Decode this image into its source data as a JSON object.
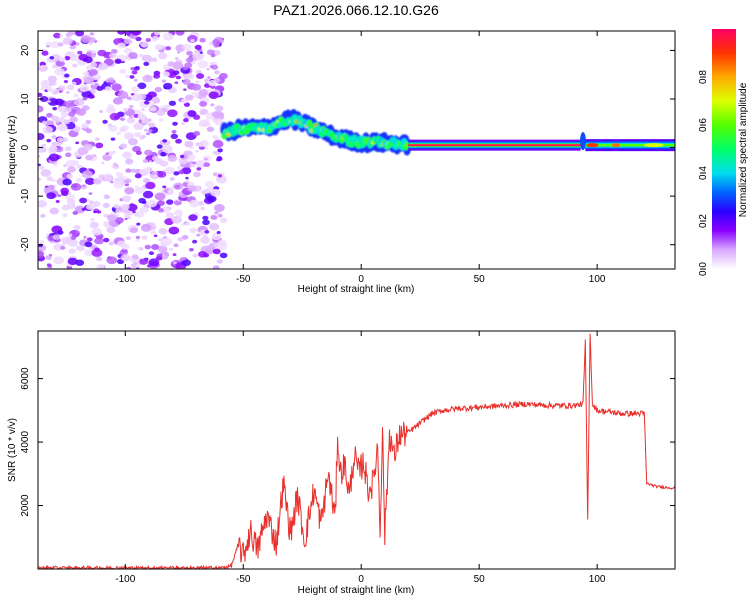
{
  "chart_data": [
    {
      "type": "heatmap",
      "title": "PAZ1.2026.066.12.10.G26",
      "xlabel": "Height of straight line (km)",
      "ylabel": "Frequency (Hz)",
      "xlim": [
        -137,
        133
      ],
      "ylim": [
        -25,
        24
      ],
      "xticks": [
        -100,
        -50,
        0,
        50,
        100
      ],
      "yticks": [
        -20,
        -10,
        0,
        10,
        20
      ],
      "colorbar": {
        "label": "Normalized spectral amplitude",
        "range": [
          0,
          1
        ],
        "ticks": [
          "0.0",
          "0.2",
          "0.4",
          "0.6",
          "0.8"
        ]
      },
      "regions": [
        {
          "name": "noise",
          "x": [
            -137,
            -58
          ],
          "freq": [
            -25,
            24
          ],
          "amplitude": "low (0.05-0.2), scattered"
        },
        {
          "name": "signal-unstable",
          "x": [
            -58,
            20
          ],
          "freq_trace": [
            [
              -58,
              3
            ],
            [
              -50,
              4
            ],
            [
              -40,
              4
            ],
            [
              -30,
              6
            ],
            [
              -20,
              4
            ],
            [
              -10,
              2
            ],
            [
              0,
              1
            ],
            [
              10,
              1
            ],
            [
              20,
              0.5
            ]
          ],
          "amplitude": "0.3-0.6"
        },
        {
          "name": "signal-stable",
          "x": [
            20,
            93
          ],
          "freq": 0.5,
          "amplitude": "1.0"
        },
        {
          "name": "signal-tail",
          "x": [
            95,
            133
          ],
          "freq": 0.5,
          "amplitude": "0.3-0.9"
        }
      ]
    },
    {
      "type": "line",
      "xlabel": "Height of straight line (km)",
      "ylabel": "SNR (10 * v/v)",
      "xlim": [
        -137,
        133
      ],
      "ylim": [
        0,
        7500
      ],
      "xticks": [
        -100,
        -50,
        0,
        50,
        100
      ],
      "yticks": [
        2000,
        4000,
        6000
      ],
      "series": [
        {
          "name": "SNR",
          "color": "#e8302c",
          "x": [
            -137,
            -100,
            -60,
            -55,
            -52,
            -50,
            -47,
            -44,
            -40,
            -36,
            -33,
            -30,
            -27,
            -24,
            -20,
            -17,
            -14,
            -11,
            -10,
            -9,
            -7,
            -5,
            -3,
            -1,
            1,
            3,
            5,
            7,
            8,
            9,
            10,
            12,
            14,
            16,
            20,
            25,
            30,
            35,
            40,
            50,
            60,
            70,
            80,
            90,
            94,
            95,
            96,
            97,
            98,
            100,
            110,
            120,
            121,
            125,
            133
          ],
          "y": [
            30,
            30,
            30,
            100,
            800,
            400,
            1200,
            600,
            1700,
            800,
            2700,
            1100,
            2300,
            900,
            2500,
            1400,
            3000,
            1600,
            4300,
            3000,
            3300,
            2300,
            3600,
            3000,
            3400,
            2500,
            2700,
            3900,
            1200,
            4500,
            1100,
            4300,
            3500,
            4200,
            4300,
            4600,
            4900,
            5000,
            5050,
            5100,
            5150,
            5200,
            5150,
            5150,
            5200,
            7200,
            1500,
            7500,
            5200,
            5000,
            4900,
            4900,
            2700,
            2600,
            2550
          ]
        }
      ]
    }
  ]
}
